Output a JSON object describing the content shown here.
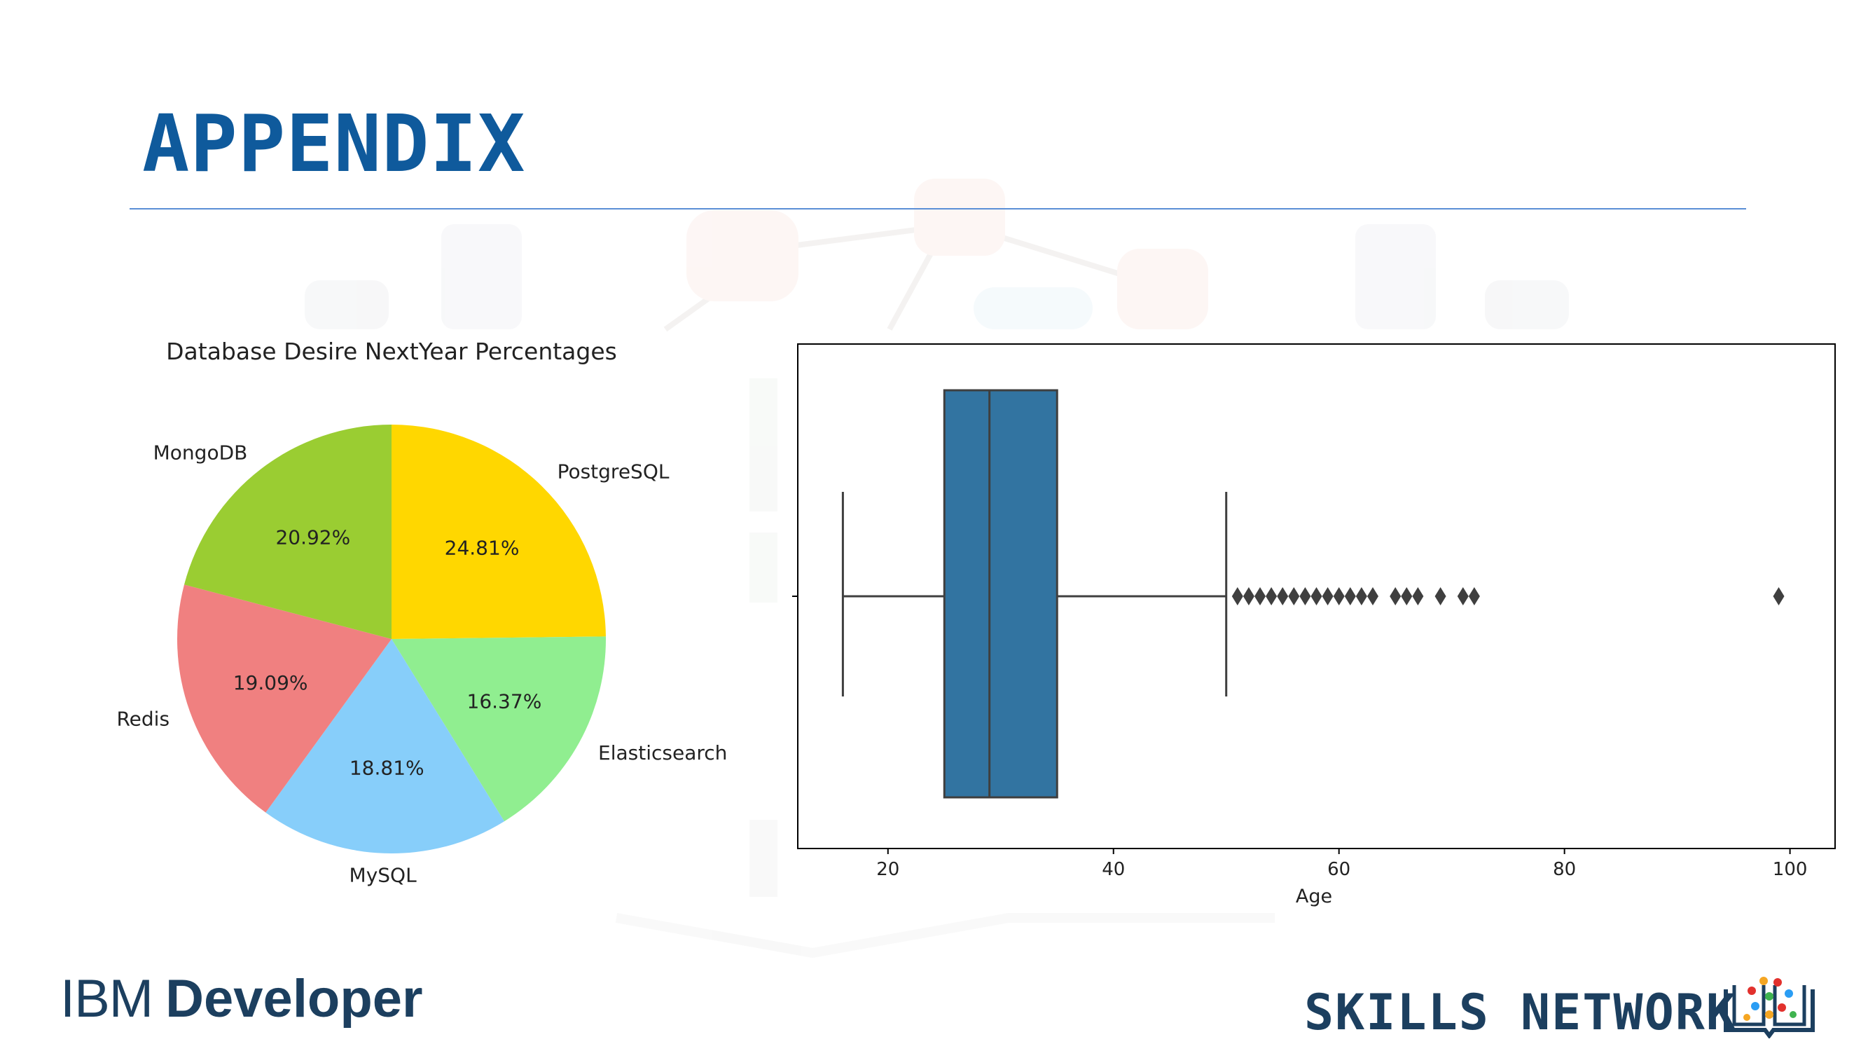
{
  "slide": {
    "title": "APPENDIX",
    "brand_left_ibm": "IBM",
    "brand_left_developer": "Developer",
    "brand_right": "SKILLS NETWORK",
    "title_color": "#0f5a9c",
    "brand_color": "#1c3f5f"
  },
  "chart_data": [
    {
      "type": "pie",
      "title": "Database Desire NextYear Percentages",
      "slices": [
        {
          "label": "PostgreSQL",
          "value": 24.81,
          "pct_label": "24.81%",
          "color": "#ffd700"
        },
        {
          "label": "Elasticsearch",
          "value": 16.37,
          "pct_label": "16.37%",
          "color": "#90ee90"
        },
        {
          "label": "MySQL",
          "value": 18.81,
          "pct_label": "18.81%",
          "color": "#87cefa"
        },
        {
          "label": "Redis",
          "value": 19.09,
          "pct_label": "19.09%",
          "color": "#f08080"
        },
        {
          "label": "MongoDB",
          "value": 20.92,
          "pct_label": "20.92%",
          "color": "#9acd32"
        }
      ]
    },
    {
      "type": "box",
      "xlabel": "Age",
      "xlim": [
        12,
        104
      ],
      "xticks": [
        20,
        40,
        60,
        80,
        100
      ],
      "whisker_low": 16,
      "q1": 25,
      "median": 29,
      "q3": 35,
      "whisker_high": 50,
      "outliers": [
        51,
        52,
        53,
        54,
        55,
        56,
        57,
        58,
        59,
        60,
        61,
        62,
        63,
        65,
        66,
        67,
        69,
        71,
        72,
        99
      ],
      "box_color": "#3274a1"
    }
  ]
}
